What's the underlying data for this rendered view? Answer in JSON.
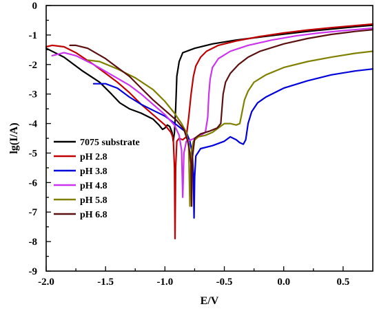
{
  "chart_data": {
    "type": "line",
    "title": "",
    "xlabel": "E/V",
    "ylabel": "lg(I/A)",
    "xlim": [
      -2.0,
      0.75
    ],
    "ylim": [
      -9,
      0
    ],
    "xticks": [
      -2.0,
      -1.5,
      -1.0,
      -0.5,
      0.0,
      0.5
    ],
    "xtick_labels": [
      "-2.0",
      "-1.5",
      "-1.0",
      "-0.5",
      "0.0",
      "0.5"
    ],
    "yticks": [
      0,
      -1,
      -2,
      -3,
      -4,
      -5,
      -6,
      -7,
      -8,
      -9
    ],
    "ytick_labels": [
      "0",
      "-1",
      "-2",
      "-3",
      "-4",
      "-5",
      "-6",
      "-7",
      "-8",
      "-9"
    ],
    "grid": false,
    "legend_position": "lower-left",
    "series": [
      {
        "name": "7075  substrate",
        "color": "#000000",
        "points": [
          [
            -2.0,
            -1.45
          ],
          [
            -1.85,
            -1.75
          ],
          [
            -1.7,
            -2.2
          ],
          [
            -1.55,
            -2.6
          ],
          [
            -1.45,
            -3.0
          ],
          [
            -1.38,
            -3.3
          ],
          [
            -1.3,
            -3.5
          ],
          [
            -1.2,
            -3.65
          ],
          [
            -1.1,
            -3.85
          ],
          [
            -1.05,
            -4.05
          ],
          [
            -1.02,
            -4.2
          ],
          [
            -1.0,
            -4.15
          ],
          [
            -0.98,
            -4.05
          ],
          [
            -0.96,
            -4.1
          ],
          [
            -0.94,
            -4.3
          ],
          [
            -0.93,
            -4.6
          ],
          [
            -0.92,
            -4.3
          ],
          [
            -0.91,
            -3.5
          ],
          [
            -0.905,
            -3.0
          ],
          [
            -0.9,
            -2.4
          ],
          [
            -0.88,
            -1.9
          ],
          [
            -0.85,
            -1.6
          ],
          [
            -0.75,
            -1.45
          ],
          [
            -0.6,
            -1.3
          ],
          [
            -0.4,
            -1.17
          ],
          [
            -0.2,
            -1.07
          ],
          [
            0.0,
            -0.97
          ],
          [
            0.2,
            -0.88
          ],
          [
            0.4,
            -0.8
          ],
          [
            0.6,
            -0.72
          ],
          [
            0.75,
            -0.67
          ]
        ]
      },
      {
        "name": "pH 2.8",
        "color": "#c00000",
        "points": [
          [
            -2.0,
            -1.4
          ],
          [
            -1.95,
            -1.35
          ],
          [
            -1.85,
            -1.4
          ],
          [
            -1.75,
            -1.6
          ],
          [
            -1.6,
            -2.0
          ],
          [
            -1.5,
            -2.3
          ],
          [
            -1.4,
            -2.6
          ],
          [
            -1.3,
            -2.95
          ],
          [
            -1.2,
            -3.35
          ],
          [
            -1.1,
            -3.7
          ],
          [
            -1.0,
            -4.05
          ],
          [
            -0.95,
            -4.3
          ],
          [
            -0.93,
            -4.5
          ],
          [
            -0.92,
            -5.5
          ],
          [
            -0.915,
            -7.9
          ],
          [
            -0.91,
            -5.5
          ],
          [
            -0.9,
            -4.6
          ],
          [
            -0.88,
            -4.5
          ],
          [
            -0.85,
            -4.55
          ],
          [
            -0.82,
            -4.45
          ],
          [
            -0.8,
            -3.8
          ],
          [
            -0.78,
            -3.0
          ],
          [
            -0.76,
            -2.4
          ],
          [
            -0.74,
            -2.05
          ],
          [
            -0.7,
            -1.75
          ],
          [
            -0.65,
            -1.55
          ],
          [
            -0.55,
            -1.35
          ],
          [
            -0.4,
            -1.2
          ],
          [
            -0.2,
            -1.05
          ],
          [
            0.0,
            -0.93
          ],
          [
            0.2,
            -0.83
          ],
          [
            0.4,
            -0.75
          ],
          [
            0.6,
            -0.68
          ],
          [
            0.75,
            -0.63
          ]
        ]
      },
      {
        "name": "pH 3.8",
        "color": "#0000dd",
        "points": [
          [
            -1.6,
            -2.65
          ],
          [
            -1.5,
            -2.65
          ],
          [
            -1.4,
            -2.8
          ],
          [
            -1.3,
            -3.1
          ],
          [
            -1.2,
            -3.35
          ],
          [
            -1.1,
            -3.55
          ],
          [
            -1.0,
            -3.75
          ],
          [
            -0.9,
            -4.05
          ],
          [
            -0.82,
            -4.3
          ],
          [
            -0.79,
            -4.6
          ],
          [
            -0.77,
            -5.0
          ],
          [
            -0.76,
            -5.8
          ],
          [
            -0.755,
            -7.2
          ],
          [
            -0.75,
            -5.8
          ],
          [
            -0.74,
            -5.1
          ],
          [
            -0.7,
            -4.85
          ],
          [
            -0.6,
            -4.75
          ],
          [
            -0.5,
            -4.6
          ],
          [
            -0.45,
            -4.45
          ],
          [
            -0.4,
            -4.55
          ],
          [
            -0.37,
            -4.65
          ],
          [
            -0.34,
            -4.7
          ],
          [
            -0.32,
            -4.55
          ],
          [
            -0.3,
            -4.0
          ],
          [
            -0.27,
            -3.6
          ],
          [
            -0.22,
            -3.3
          ],
          [
            -0.15,
            -3.1
          ],
          [
            0.0,
            -2.8
          ],
          [
            0.2,
            -2.55
          ],
          [
            0.4,
            -2.35
          ],
          [
            0.6,
            -2.22
          ],
          [
            0.75,
            -2.15
          ]
        ]
      },
      {
        "name": "pH 4.8",
        "color": "#cc33ee",
        "points": [
          [
            -1.95,
            -1.7
          ],
          [
            -1.85,
            -1.6
          ],
          [
            -1.75,
            -1.7
          ],
          [
            -1.6,
            -2.0
          ],
          [
            -1.45,
            -2.35
          ],
          [
            -1.3,
            -2.7
          ],
          [
            -1.2,
            -3.0
          ],
          [
            -1.1,
            -3.35
          ],
          [
            -1.0,
            -3.7
          ],
          [
            -0.92,
            -4.05
          ],
          [
            -0.88,
            -4.4
          ],
          [
            -0.86,
            -4.9
          ],
          [
            -0.85,
            -6.5
          ],
          [
            -0.84,
            -5.0
          ],
          [
            -0.82,
            -4.6
          ],
          [
            -0.78,
            -4.55
          ],
          [
            -0.72,
            -4.45
          ],
          [
            -0.66,
            -4.3
          ],
          [
            -0.64,
            -3.8
          ],
          [
            -0.63,
            -3.0
          ],
          [
            -0.62,
            -2.5
          ],
          [
            -0.6,
            -2.1
          ],
          [
            -0.55,
            -1.8
          ],
          [
            -0.45,
            -1.55
          ],
          [
            -0.3,
            -1.35
          ],
          [
            -0.1,
            -1.17
          ],
          [
            0.1,
            -1.03
          ],
          [
            0.3,
            -0.93
          ],
          [
            0.5,
            -0.85
          ],
          [
            0.75,
            -0.77
          ]
        ]
      },
      {
        "name": "pH 5.8",
        "color": "#808000",
        "points": [
          [
            -1.65,
            -1.85
          ],
          [
            -1.55,
            -1.9
          ],
          [
            -1.4,
            -2.15
          ],
          [
            -1.25,
            -2.45
          ],
          [
            -1.1,
            -2.85
          ],
          [
            -1.0,
            -3.25
          ],
          [
            -0.92,
            -3.65
          ],
          [
            -0.86,
            -4.0
          ],
          [
            -0.82,
            -4.3
          ],
          [
            -0.8,
            -4.8
          ],
          [
            -0.79,
            -6.8
          ],
          [
            -0.78,
            -5.0
          ],
          [
            -0.76,
            -4.6
          ],
          [
            -0.72,
            -4.45
          ],
          [
            -0.66,
            -4.4
          ],
          [
            -0.6,
            -4.3
          ],
          [
            -0.55,
            -4.15
          ],
          [
            -0.5,
            -4.0
          ],
          [
            -0.45,
            -4.0
          ],
          [
            -0.4,
            -4.05
          ],
          [
            -0.37,
            -4.0
          ],
          [
            -0.35,
            -3.6
          ],
          [
            -0.33,
            -3.2
          ],
          [
            -0.3,
            -2.9
          ],
          [
            -0.25,
            -2.6
          ],
          [
            -0.15,
            -2.35
          ],
          [
            0.0,
            -2.1
          ],
          [
            0.2,
            -1.9
          ],
          [
            0.4,
            -1.75
          ],
          [
            0.6,
            -1.62
          ],
          [
            0.75,
            -1.55
          ]
        ]
      },
      {
        "name": "pH 6.8",
        "color": "#5a1010",
        "points": [
          [
            -1.8,
            -1.35
          ],
          [
            -1.75,
            -1.35
          ],
          [
            -1.65,
            -1.45
          ],
          [
            -1.5,
            -1.8
          ],
          [
            -1.4,
            -2.1
          ],
          [
            -1.3,
            -2.4
          ],
          [
            -1.2,
            -2.8
          ],
          [
            -1.1,
            -3.2
          ],
          [
            -1.0,
            -3.55
          ],
          [
            -0.9,
            -3.9
          ],
          [
            -0.84,
            -4.2
          ],
          [
            -0.8,
            -4.7
          ],
          [
            -0.78,
            -5.4
          ],
          [
            -0.775,
            -6.8
          ],
          [
            -0.77,
            -5.2
          ],
          [
            -0.75,
            -4.5
          ],
          [
            -0.7,
            -4.35
          ],
          [
            -0.62,
            -4.25
          ],
          [
            -0.56,
            -4.15
          ],
          [
            -0.53,
            -4.0
          ],
          [
            -0.52,
            -3.5
          ],
          [
            -0.51,
            -3.0
          ],
          [
            -0.49,
            -2.6
          ],
          [
            -0.45,
            -2.3
          ],
          [
            -0.38,
            -2.0
          ],
          [
            -0.3,
            -1.75
          ],
          [
            -0.2,
            -1.55
          ],
          [
            0.0,
            -1.3
          ],
          [
            0.2,
            -1.12
          ],
          [
            0.4,
            -0.98
          ],
          [
            0.6,
            -0.88
          ],
          [
            0.75,
            -0.82
          ]
        ]
      }
    ]
  }
}
